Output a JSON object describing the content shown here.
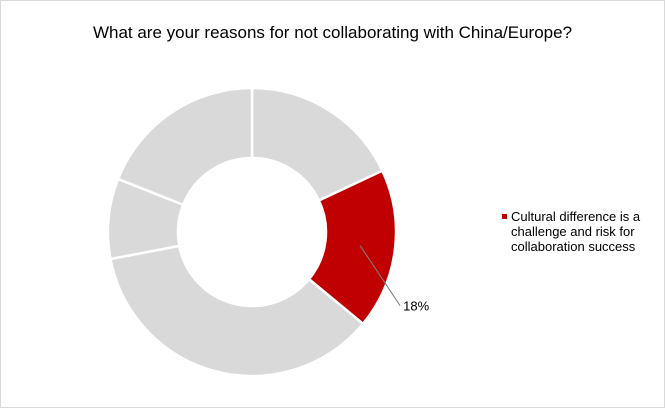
{
  "chart_data": {
    "type": "donut",
    "title": "What are your reasons for not collaborating with China/Europe?",
    "slices": [
      {
        "value": 18,
        "color": "#d9d9d9",
        "label": ""
      },
      {
        "value": 18,
        "color": "#c00000",
        "label": "18%",
        "highlighted": true
      },
      {
        "value": 36,
        "color": "#d9d9d9",
        "label": ""
      },
      {
        "value": 9,
        "color": "#d9d9d9",
        "label": ""
      },
      {
        "value": 19,
        "color": "#d9d9d9",
        "label": ""
      }
    ],
    "legend": {
      "placement": "right",
      "entries": [
        {
          "name": "Cultural difference is a challenge and risk for collaboration success",
          "color": "#c00000"
        }
      ]
    },
    "separator_color": "#ffffff"
  }
}
